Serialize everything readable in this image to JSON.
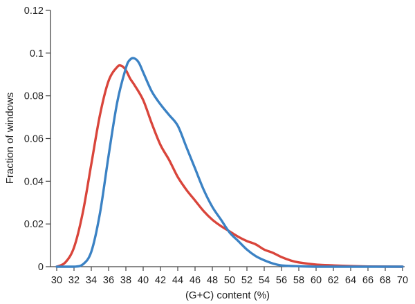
{
  "chart_data": {
    "type": "line",
    "title": "",
    "xlabel": "(G+C) content (%)",
    "ylabel": "Fraction of windows",
    "xlim": [
      30,
      70
    ],
    "ylim": [
      0,
      0.12
    ],
    "x_ticks": [
      30,
      32,
      34,
      36,
      38,
      40,
      42,
      44,
      46,
      48,
      50,
      52,
      54,
      56,
      58,
      60,
      62,
      64,
      66,
      68,
      70
    ],
    "y_ticks": [
      0,
      0.02,
      0.04,
      0.06,
      0.08,
      0.1,
      0.12
    ],
    "y_tick_labels": [
      "0",
      "0.02",
      "0.04",
      "0.06",
      "0.08",
      "0.1",
      "0.12"
    ],
    "grid": false,
    "legend": "none",
    "series": [
      {
        "color": "#d9453b",
        "x": [
          30,
          31,
          32,
          33,
          34,
          35,
          36,
          37,
          37.5,
          38,
          38.5,
          39,
          40,
          41,
          42,
          43,
          44,
          45,
          46,
          47,
          48,
          49,
          50,
          51,
          52,
          53,
          54,
          55,
          56,
          57,
          58,
          60,
          62,
          64,
          66,
          70
        ],
        "y": [
          0,
          0.002,
          0.009,
          0.025,
          0.048,
          0.071,
          0.087,
          0.0935,
          0.094,
          0.092,
          0.088,
          0.085,
          0.078,
          0.067,
          0.057,
          0.05,
          0.042,
          0.036,
          0.031,
          0.026,
          0.022,
          0.019,
          0.0165,
          0.014,
          0.012,
          0.0105,
          0.008,
          0.0065,
          0.0045,
          0.003,
          0.002,
          0.001,
          0.0006,
          0.0003,
          0.0001,
          0
        ]
      },
      {
        "color": "#3b82c4",
        "x": [
          30,
          32,
          33,
          34,
          35,
          36,
          37,
          38,
          38.5,
          39,
          39.5,
          40,
          41,
          42,
          43,
          44,
          45,
          46,
          47,
          48,
          49,
          50,
          51,
          52,
          53,
          54,
          55,
          56,
          58,
          60,
          62,
          70
        ],
        "y": [
          0,
          0,
          0.001,
          0.007,
          0.025,
          0.052,
          0.077,
          0.093,
          0.097,
          0.0975,
          0.0955,
          0.091,
          0.082,
          0.076,
          0.071,
          0.066,
          0.056,
          0.046,
          0.036,
          0.028,
          0.022,
          0.016,
          0.012,
          0.008,
          0.005,
          0.003,
          0.0015,
          0.0006,
          0.0002,
          0,
          0,
          0
        ]
      }
    ]
  }
}
